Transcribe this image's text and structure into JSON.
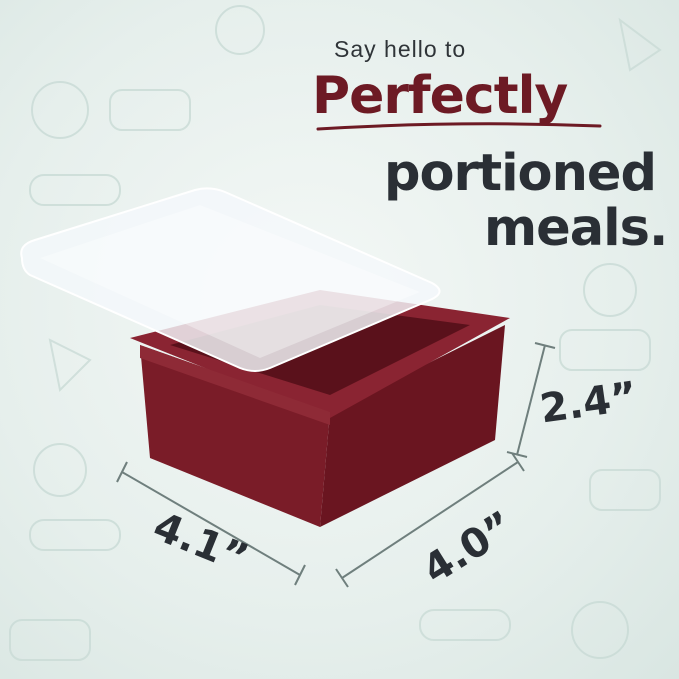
{
  "headline": {
    "line1": "Say hello to",
    "line2": "Perfectly",
    "line3": "portioned",
    "line4": "meals."
  },
  "dimensions": {
    "height": "2.4”",
    "width": "4.1”",
    "depth": "4.0”"
  },
  "colors": {
    "accent": "#6d1a24",
    "text": "#2a2f35",
    "container": "#7a1c28",
    "background": "#e6efec"
  }
}
